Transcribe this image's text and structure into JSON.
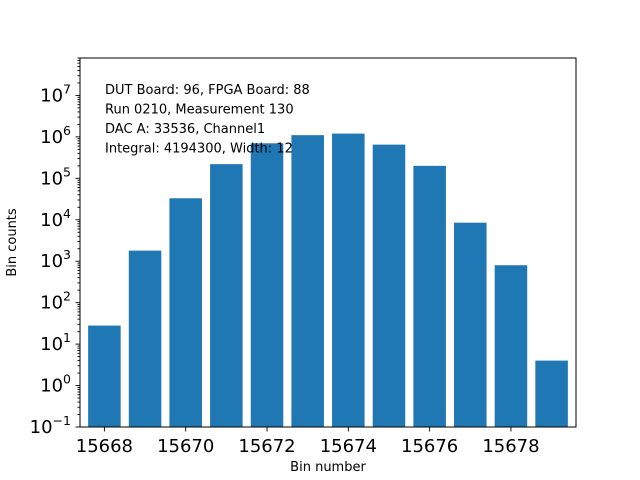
{
  "chart_data": {
    "type": "bar",
    "title": "",
    "xlabel": "Bin number",
    "ylabel": "Bin counts",
    "x_scale": "linear",
    "y_scale": "log",
    "xlim": [
      15667.4,
      15679.6
    ],
    "ylim": [
      0.1,
      80000000
    ],
    "bar_color": "#1f77b4",
    "bar_width": 0.8,
    "grid": false,
    "x": [
      15668,
      15669,
      15670,
      15671,
      15672,
      15673,
      15674,
      15675,
      15676,
      15677,
      15678,
      15679
    ],
    "values": [
      28,
      1800,
      33000,
      220000,
      700000,
      1100000,
      1200000,
      650000,
      200000,
      8500,
      800,
      4
    ],
    "x_ticks": [
      15668,
      15670,
      15672,
      15674,
      15676,
      15678
    ],
    "x_tick_labels": [
      "15668",
      "15670",
      "15672",
      "15674",
      "15676",
      "15678"
    ],
    "y_tick_labels": [
      {
        "base": "10",
        "exp": "−1"
      },
      {
        "base": "10",
        "exp": "0"
      },
      {
        "base": "10",
        "exp": "1"
      },
      {
        "base": "10",
        "exp": "2"
      },
      {
        "base": "10",
        "exp": "3"
      },
      {
        "base": "10",
        "exp": "4"
      },
      {
        "base": "10",
        "exp": "5"
      },
      {
        "base": "10",
        "exp": "6"
      },
      {
        "base": "10",
        "exp": "7"
      }
    ],
    "annotation": [
      "DUT Board: 96, FPGA Board: 88",
      "Run 0210, Measurement 130",
      "DAC A: 33536, Channel1",
      "Integral: 4194300, Width: 12"
    ],
    "annotation_location": "top-left"
  }
}
